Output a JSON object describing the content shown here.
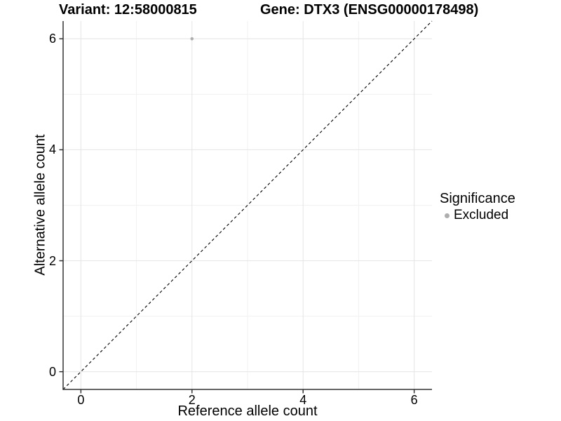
{
  "figure": {
    "title_left": "Variant: 12:58000815",
    "title_right": "Gene: DTX3 (ENSG00000178498)",
    "x_axis": {
      "label": "Reference allele count",
      "tick_labels": [
        "0",
        "2",
        "4",
        "6"
      ]
    },
    "y_axis": {
      "label": "Alternative allele count",
      "tick_labels": [
        "0",
        "2",
        "4",
        "6"
      ]
    },
    "legend": {
      "title": "Significance",
      "items": [
        {
          "label": "Excluded",
          "marker": "circle",
          "color": "#aeaeae"
        }
      ]
    }
  },
  "chart_data": {
    "type": "scatter",
    "title": "Variant: 12:58000815 | Gene: DTX3 (ENSG00000178498)",
    "xlabel": "Reference allele count",
    "ylabel": "Alternative allele count",
    "xlim": [
      -0.32,
      6.32
    ],
    "ylim": [
      -0.32,
      6.32
    ],
    "x_ticks": [
      0,
      2,
      4,
      6
    ],
    "y_ticks": [
      0,
      2,
      4,
      6
    ],
    "x_minor_ticks": [
      1,
      3,
      5
    ],
    "y_minor_ticks": [
      1,
      3,
      5
    ],
    "grid": "major+minor",
    "legend_position": "right",
    "series": [
      {
        "name": "Excluded",
        "marker": "circle",
        "color": "#aeaeae",
        "points": [
          {
            "x": 2,
            "y": 6
          }
        ]
      }
    ],
    "reference_line": {
      "kind": "identity",
      "slope": 1,
      "intercept": 0,
      "style": "dashed",
      "color": "#000000"
    }
  },
  "style": {
    "background": "#ffffff",
    "grid_major_color": "#e4e4e4",
    "grid_minor_color": "#f1f1f1",
    "axis_line_color": "#333333",
    "tick_mark_color": "#333333",
    "text_color": "#000000",
    "point_radius": 2.3
  }
}
